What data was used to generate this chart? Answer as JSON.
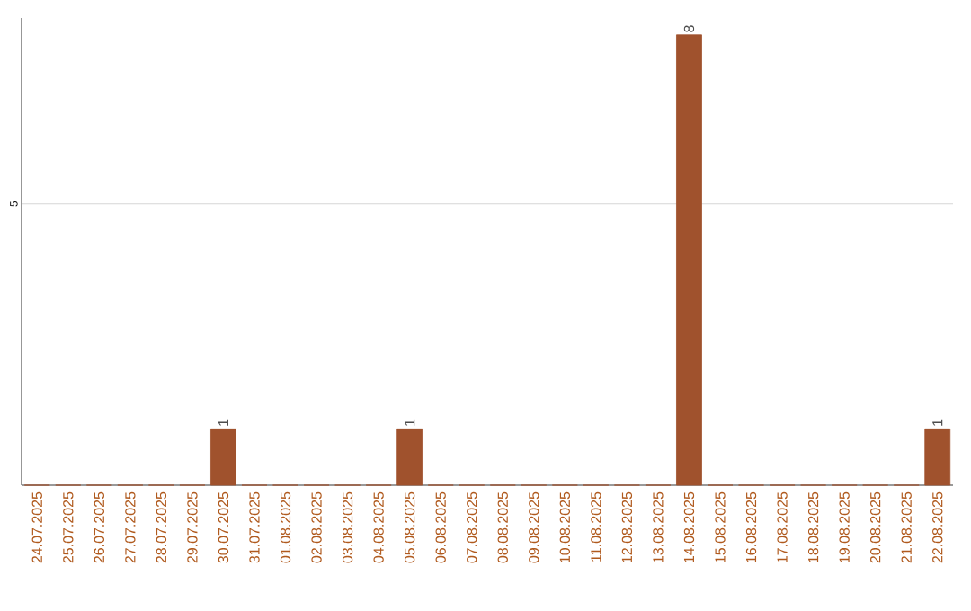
{
  "chart_data": {
    "type": "bar",
    "categories": [
      "24.07.2025",
      "25.07.2025",
      "26.07.2025",
      "27.07.2025",
      "28.07.2025",
      "29.07.2025",
      "30.07.2025",
      "31.07.2025",
      "01.08.2025",
      "02.08.2025",
      "03.08.2025",
      "04.08.2025",
      "05.08.2025",
      "06.08.2025",
      "07.08.2025",
      "08.08.2025",
      "09.08.2025",
      "10.08.2025",
      "11.08.2025",
      "12.08.2025",
      "13.08.2025",
      "14.08.2025",
      "15.08.2025",
      "16.08.2025",
      "17.08.2025",
      "18.08.2025",
      "19.08.2025",
      "20.08.2025",
      "21.08.2025",
      "22.08.2025"
    ],
    "values": [
      0,
      0,
      0,
      0,
      0,
      0,
      1,
      0,
      0,
      0,
      0,
      0,
      1,
      0,
      0,
      0,
      0,
      0,
      0,
      0,
      0,
      8,
      0,
      0,
      0,
      0,
      0,
      0,
      0,
      1
    ],
    "value_labels": [
      null,
      null,
      null,
      null,
      null,
      null,
      "1",
      null,
      null,
      null,
      null,
      null,
      "1",
      null,
      null,
      null,
      null,
      null,
      null,
      null,
      null,
      "8",
      null,
      null,
      null,
      null,
      null,
      null,
      null,
      "1"
    ],
    "color": "#a0522d",
    "ylim": [
      0,
      8.3
    ],
    "ref_lines": [
      {
        "axis": "y",
        "value": 5,
        "label": "5",
        "color": "#cccccc"
      }
    ]
  }
}
